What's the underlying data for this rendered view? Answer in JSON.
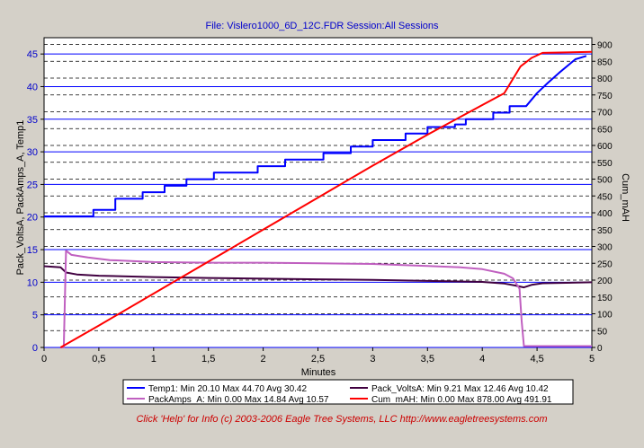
{
  "chart_data": {
    "type": "line",
    "title": "File: Vislero1000_6D_12C.FDR   Session:All Sessions",
    "xlabel": "Minutes",
    "ylabel": "Pack_VoltsA, PackAmps_A, Temp1",
    "y2label": "Cum_mAH",
    "xlim": [
      0,
      5
    ],
    "ylim": [
      0,
      47.5
    ],
    "y2lim": [
      0,
      920
    ],
    "x_ticks": [
      "0",
      "0,5",
      "1",
      "1,5",
      "2",
      "2,5",
      "3",
      "3,5",
      "4",
      "4,5",
      "5"
    ],
    "y_ticks": [
      0,
      5,
      10,
      15,
      20,
      25,
      30,
      35,
      40,
      45
    ],
    "y2_ticks": [
      0,
      50,
      100,
      150,
      200,
      250,
      300,
      350,
      400,
      450,
      500,
      550,
      600,
      650,
      700,
      750,
      800,
      850,
      900
    ],
    "grid": true,
    "legend_position": "bottom",
    "series": [
      {
        "name": "Temp1",
        "legend": "Temp1:  Min 20.10 Max 44.70 Avg 30.42",
        "color": "#0000ff",
        "axis": "left",
        "points": [
          [
            0,
            20.1
          ],
          [
            0.45,
            20.1
          ],
          [
            0.45,
            21.1
          ],
          [
            0.65,
            21.1
          ],
          [
            0.65,
            22.8
          ],
          [
            0.9,
            22.8
          ],
          [
            0.9,
            23.8
          ],
          [
            1.1,
            23.8
          ],
          [
            1.1,
            24.8
          ],
          [
            1.3,
            24.8
          ],
          [
            1.3,
            25.8
          ],
          [
            1.55,
            25.8
          ],
          [
            1.55,
            26.8
          ],
          [
            1.95,
            26.8
          ],
          [
            1.95,
            27.8
          ],
          [
            2.2,
            27.8
          ],
          [
            2.2,
            28.8
          ],
          [
            2.55,
            28.8
          ],
          [
            2.55,
            29.8
          ],
          [
            2.8,
            29.8
          ],
          [
            2.8,
            30.8
          ],
          [
            3.0,
            30.8
          ],
          [
            3.0,
            31.8
          ],
          [
            3.3,
            31.8
          ],
          [
            3.3,
            32.8
          ],
          [
            3.5,
            32.8
          ],
          [
            3.5,
            33.8
          ],
          [
            3.75,
            33.8
          ],
          [
            3.75,
            34.2
          ],
          [
            3.85,
            34.2
          ],
          [
            3.85,
            35.0
          ],
          [
            4.1,
            35.0
          ],
          [
            4.1,
            36.0
          ],
          [
            4.25,
            36.0
          ],
          [
            4.25,
            37.0
          ],
          [
            4.4,
            37.0
          ],
          [
            4.5,
            39.0
          ],
          [
            4.6,
            40.6
          ],
          [
            4.7,
            42.1
          ],
          [
            4.8,
            43.5
          ],
          [
            4.85,
            44.2
          ],
          [
            4.95,
            44.7
          ]
        ]
      },
      {
        "name": "Pack_VoltsA",
        "legend": "Pack_VoltsA:  Min 9.21 Max 12.46 Avg 10.42",
        "color": "#400040",
        "axis": "left",
        "points": [
          [
            0,
            12.46
          ],
          [
            0.15,
            12.3
          ],
          [
            0.2,
            11.5
          ],
          [
            0.3,
            11.2
          ],
          [
            0.5,
            11.0
          ],
          [
            1,
            10.8
          ],
          [
            1.5,
            10.65
          ],
          [
            2,
            10.55
          ],
          [
            2.5,
            10.45
          ],
          [
            3,
            10.35
          ],
          [
            3.5,
            10.2
          ],
          [
            4,
            10.05
          ],
          [
            4.2,
            9.8
          ],
          [
            4.3,
            9.5
          ],
          [
            4.38,
            9.21
          ],
          [
            4.45,
            9.6
          ],
          [
            4.55,
            9.85
          ],
          [
            5,
            10.0
          ]
        ]
      },
      {
        "name": "PackAmps_A",
        "legend": "PackAmps_A:  Min 0.00 Max 14.84 Avg 10.57",
        "color": "#c060c0",
        "axis": "left",
        "points": [
          [
            0.15,
            0
          ],
          [
            0.18,
            0
          ],
          [
            0.2,
            14.84
          ],
          [
            0.25,
            14.2
          ],
          [
            0.4,
            13.8
          ],
          [
            0.6,
            13.4
          ],
          [
            1,
            13.1
          ],
          [
            1.5,
            13.0
          ],
          [
            2,
            13.0
          ],
          [
            2.5,
            12.9
          ],
          [
            3,
            12.8
          ],
          [
            3.5,
            12.5
          ],
          [
            3.8,
            12.3
          ],
          [
            4,
            12.0
          ],
          [
            4.2,
            11.3
          ],
          [
            4.28,
            10.6
          ],
          [
            4.34,
            9.0
          ],
          [
            4.36,
            4
          ],
          [
            4.38,
            0.2
          ],
          [
            5,
            0.2
          ]
        ]
      },
      {
        "name": "Cum_mAH",
        "legend": "Cum_mAH:  Min 0.00 Max 878.00 Avg 491.91",
        "color": "#ff0000",
        "axis": "right",
        "points": [
          [
            0.15,
            0
          ],
          [
            0.5,
            65
          ],
          [
            1,
            160
          ],
          [
            1.5,
            255
          ],
          [
            2,
            350
          ],
          [
            2.5,
            445
          ],
          [
            3,
            540
          ],
          [
            3.5,
            632
          ],
          [
            4,
            720
          ],
          [
            4.2,
            755
          ],
          [
            4.35,
            835
          ],
          [
            4.45,
            860
          ],
          [
            4.55,
            875
          ],
          [
            5,
            878
          ]
        ]
      }
    ]
  },
  "footer_text": "Click 'Help' for Info  (c) 2003-2006 Eagle Tree Systems, LLC     http://www.eagletreesystems.com"
}
